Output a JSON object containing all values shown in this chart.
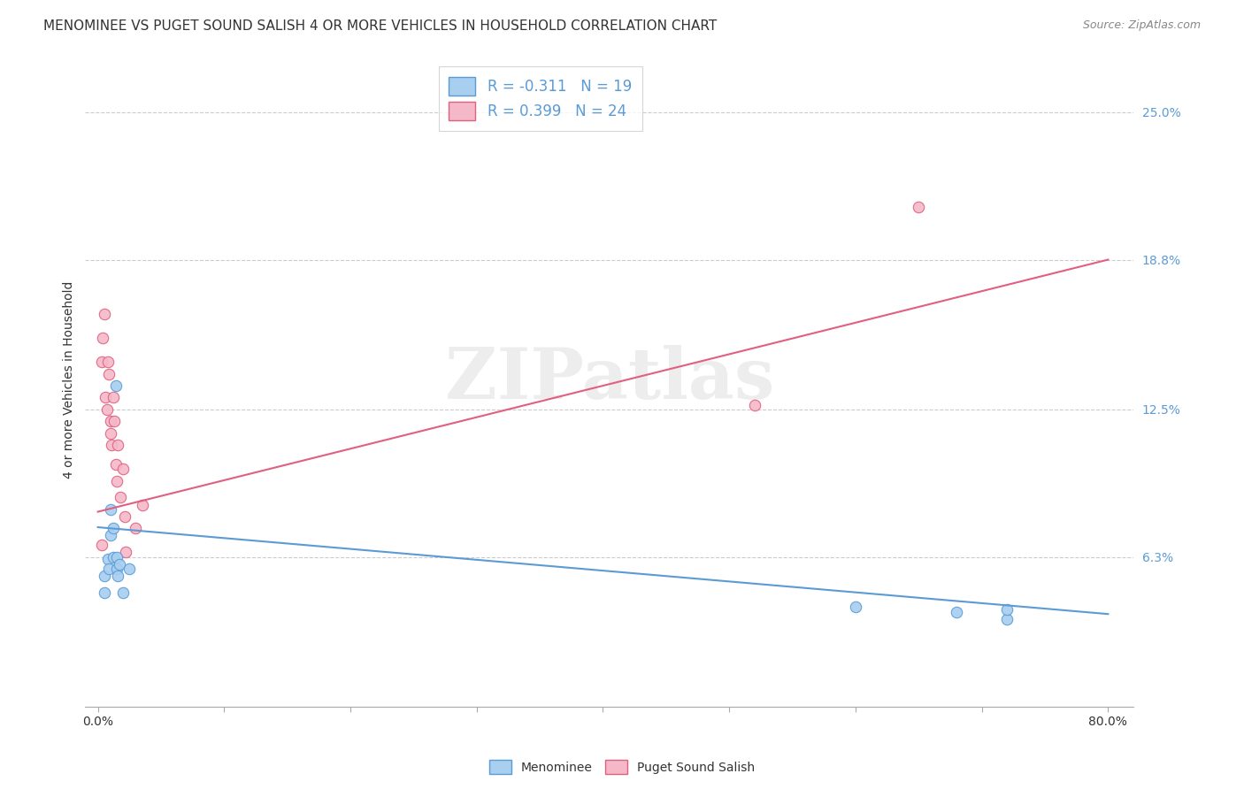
{
  "title": "MENOMINEE VS PUGET SOUND SALISH 4 OR MORE VEHICLES IN HOUSEHOLD CORRELATION CHART",
  "source": "Source: ZipAtlas.com",
  "ylabel": "4 or more Vehicles in Household",
  "xlim": [
    -0.01,
    0.82
  ],
  "ylim": [
    0.0,
    0.275
  ],
  "xticks": [
    0.0,
    0.1,
    0.2,
    0.3,
    0.4,
    0.5,
    0.6,
    0.7,
    0.8
  ],
  "xticklabels": [
    "0.0%",
    "",
    "",
    "",
    "",
    "",
    "",
    "",
    "80.0%"
  ],
  "ytick_positions": [
    0.063,
    0.125,
    0.188,
    0.25
  ],
  "ytick_labels": [
    "6.3%",
    "12.5%",
    "18.8%",
    "25.0%"
  ],
  "menominee_r": -0.311,
  "menominee_n": 19,
  "pugetsound_r": 0.399,
  "pugetsound_n": 24,
  "menominee_color": "#a8cef0",
  "pugetsound_color": "#f4b8c8",
  "menominee_edge_color": "#5b9bd5",
  "pugetsound_edge_color": "#e06080",
  "menominee_line_color": "#5b9bd5",
  "pugetsound_line_color": "#e06080",
  "tick_color": "#5b9bd5",
  "background_color": "#ffffff",
  "grid_color": "#cccccc",
  "watermark_text": "ZIPatlas",
  "menominee_x": [
    0.005,
    0.005,
    0.008,
    0.009,
    0.01,
    0.01,
    0.012,
    0.012,
    0.014,
    0.015,
    0.015,
    0.016,
    0.017,
    0.02,
    0.025,
    0.6,
    0.68,
    0.72,
    0.72
  ],
  "menominee_y": [
    0.055,
    0.048,
    0.062,
    0.058,
    0.072,
    0.083,
    0.063,
    0.075,
    0.135,
    0.063,
    0.058,
    0.055,
    0.06,
    0.048,
    0.058,
    0.042,
    0.04,
    0.037,
    0.041
  ],
  "pugetsound_x": [
    0.003,
    0.003,
    0.004,
    0.005,
    0.006,
    0.007,
    0.008,
    0.009,
    0.01,
    0.01,
    0.011,
    0.012,
    0.013,
    0.014,
    0.015,
    0.016,
    0.018,
    0.02,
    0.021,
    0.022,
    0.03,
    0.035,
    0.52,
    0.65
  ],
  "pugetsound_y": [
    0.068,
    0.145,
    0.155,
    0.165,
    0.13,
    0.125,
    0.145,
    0.14,
    0.12,
    0.115,
    0.11,
    0.13,
    0.12,
    0.102,
    0.095,
    0.11,
    0.088,
    0.1,
    0.08,
    0.065,
    0.075,
    0.085,
    0.127,
    0.21
  ],
  "men_line_x0": 0.0,
  "men_line_y0": 0.0755,
  "men_line_x1": 0.8,
  "men_line_y1": 0.039,
  "pug_line_x0": 0.0,
  "pug_line_y0": 0.082,
  "pug_line_x1": 0.8,
  "pug_line_y1": 0.188,
  "marker_size": 80,
  "title_fontsize": 11,
  "axis_label_fontsize": 10,
  "tick_fontsize": 10,
  "legend_fontsize": 12,
  "source_fontsize": 9
}
